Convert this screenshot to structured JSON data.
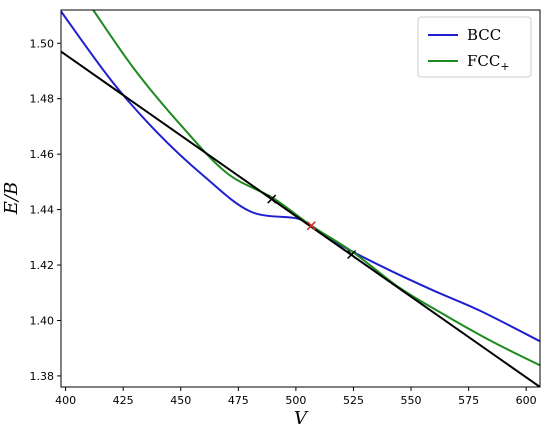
{
  "chart_data": {
    "type": "line",
    "xlabel": "V",
    "ylabel": "E/B",
    "xlim": [
      398,
      606
    ],
    "ylim": [
      1.376,
      1.512
    ],
    "xticks": [
      400,
      425,
      450,
      475,
      500,
      525,
      550,
      575,
      600
    ],
    "yticks": [
      1.38,
      1.4,
      1.42,
      1.44,
      1.46,
      1.48,
      1.5
    ],
    "grid": false,
    "legend": {
      "position": "top-right"
    },
    "series": [
      {
        "name": "BCC",
        "color": "#1f1fd0",
        "x": [
          398,
          420,
          440,
          460,
          480,
          500,
          506.7,
          520,
          540,
          560,
          580,
          606
        ],
        "y": [
          1.5115,
          1.4864,
          1.4676,
          1.4521,
          1.4394,
          1.4369,
          1.4342,
          1.4269,
          1.4184,
          1.4107,
          1.4035,
          1.3925
        ]
      },
      {
        "name": "FCC+",
        "color": "#1f8a1f",
        "x": [
          412,
          430,
          450,
          470,
          490,
          506.7,
          525,
          545,
          565,
          585,
          606
        ],
        "y": [
          1.512,
          1.4905,
          1.4705,
          1.4532,
          1.4442,
          1.4342,
          1.4245,
          1.4118,
          1.4018,
          1.3925,
          1.3838
        ]
      },
      {
        "name": "",
        "color": "#000000",
        "x": [
          398,
          606
        ],
        "y": [
          1.497,
          1.376
        ]
      }
    ],
    "markers": [
      {
        "x": 489.5,
        "y": 1.4438,
        "color": "#000000"
      },
      {
        "x": 506.7,
        "y": 1.4342,
        "color": "#d62728"
      },
      {
        "x": 524.2,
        "y": 1.4238,
        "color": "#000000"
      }
    ],
    "legend_entries": [
      {
        "label": "BCC",
        "subscript": "",
        "color": "#1f1fd0"
      },
      {
        "label": "FCC",
        "subscript": "+",
        "color": "#1f8a1f"
      }
    ]
  }
}
